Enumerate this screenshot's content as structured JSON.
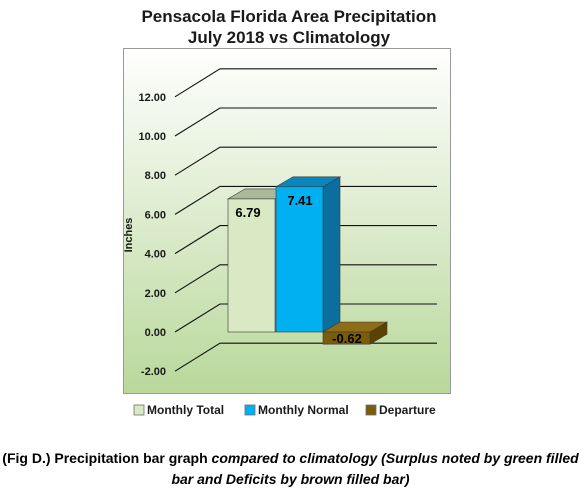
{
  "chart_data": {
    "type": "bar",
    "title_lines": [
      "Pensacola Florida Area Precipitation",
      "July 2018 vs Climatology"
    ],
    "ylabel": "Inches",
    "xlabel": "",
    "ylim": [
      -2,
      14
    ],
    "yticks": [
      -2,
      0,
      2,
      4,
      6,
      8,
      10,
      12
    ],
    "ytick_labels": [
      "-2.00",
      "0.00",
      "2.00",
      "4.00",
      "6.00",
      "8.00",
      "10.00",
      "12.00"
    ],
    "grid": true,
    "legend_position": "bottom",
    "series": [
      {
        "name": "Monthly Total",
        "value": 6.79,
        "label": "6.79",
        "color": "#d8e9c3",
        "side_color": "#b5cc98",
        "top_color": "#a9b99a"
      },
      {
        "name": "Monthly Normal",
        "value": 7.41,
        "label": "7.41",
        "color": "#00b0f0",
        "side_color": "#0a6f9e",
        "top_color": "#0a86bf"
      },
      {
        "name": "Departure",
        "value": -0.62,
        "label": "-0.62",
        "color": "#7a5c0a",
        "side_color": "#5a4300",
        "top_color": "#8d6e17"
      }
    ],
    "background_gradient": [
      "#ffffff",
      "#b9d89b"
    ]
  },
  "caption": {
    "part1": "(Fig D.) Precipitation bar graph ",
    "part2": "compared to climatology (Surplus noted by green filled bar and Deficits by brown filled bar)"
  }
}
